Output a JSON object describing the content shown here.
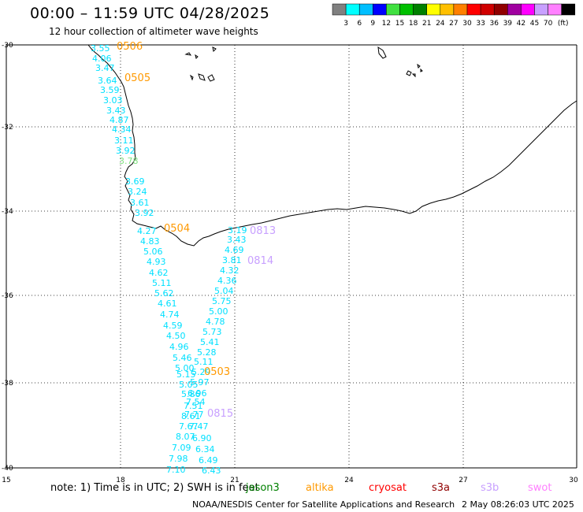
{
  "title": "00:00 – 11:59 UTC 04/28/2025",
  "subtitle": "12 hour collection of altimeter wave heights",
  "colorbar": {
    "colors": [
      "#808080",
      "#00ffff",
      "#00bfff",
      "#0000ff",
      "#40e040",
      "#00c000",
      "#008000",
      "#ffff00",
      "#ffc000",
      "#ff8000",
      "#ff0000",
      "#d00000",
      "#900000",
      "#a000a0",
      "#ff00ff",
      "#c8a0ff",
      "#ff80ff",
      "#000000"
    ],
    "labels": [
      "3",
      "6",
      "9",
      "12",
      "15",
      "18",
      "21",
      "24",
      "27",
      "30",
      "33",
      "36",
      "39",
      "42",
      "45",
      "70"
    ],
    "unit": "(ft)"
  },
  "axes": {
    "x_ticks": [
      "15",
      "18",
      "21",
      "24",
      "27",
      "30"
    ],
    "y_ticks": [
      "-30",
      "-32",
      "-34",
      "-36",
      "-38",
      "-40"
    ]
  },
  "passes": [
    {
      "label": "0506",
      "color": "#ff9900"
    },
    {
      "label": "0505",
      "color": "#ff9900"
    },
    {
      "label": "0504",
      "color": "#ff9900"
    },
    {
      "label": "0503",
      "color": "#ff9900"
    },
    {
      "label": "0813",
      "color": "#c8a0ff"
    },
    {
      "label": "0814",
      "color": "#c8a0ff"
    },
    {
      "label": "0815",
      "color": "#c8a0ff"
    }
  ],
  "track_west": [
    "3.55",
    "4.06",
    "3.47",
    "3.64",
    "3.59",
    "3.03",
    "3.43",
    "4.87",
    "4.34",
    "3.11",
    "3.92",
    "3.78",
    "3.69",
    "3.24",
    "3.61",
    "3.92",
    "4.27",
    "4.83",
    "5.06",
    "4.93",
    "4.62",
    "5.11",
    "5.62",
    "4.61",
    "4.74",
    "4.59",
    "4.50",
    "4.96",
    "5.46",
    "5.00",
    "5.15",
    "5.05",
    "5.86",
    "7.51",
    "8.61",
    "7.67",
    "8.07",
    "7.09",
    "7.98",
    "7.10"
  ],
  "track_east": [
    "3.19",
    "3.43",
    "4.69",
    "3.81",
    "4.32",
    "4.36",
    "5.04",
    "5.75",
    "5.00",
    "4.78",
    "5.73",
    "5.41",
    "5.28",
    "5.11",
    "5.29",
    "5.97",
    "6.96",
    "7.54",
    "7.77",
    "7.47",
    "6.90",
    "6.34",
    "6.49",
    "6.43"
  ],
  "note": "note:  1) Time is in UTC;  2) SWH is in feet",
  "missions": [
    {
      "name": "jason3",
      "color": "#008000"
    },
    {
      "name": "altika",
      "color": "#ff9900"
    },
    {
      "name": "cryosat",
      "color": "#ff0000"
    },
    {
      "name": "s3a",
      "color": "#900000"
    },
    {
      "name": "s3b",
      "color": "#c8a0ff"
    },
    {
      "name": "swot",
      "color": "#ff80ff"
    }
  ],
  "credit": "NOAA/NESDIS Center for Satellite Applications and Research",
  "timestamp": "2 May 08:26:03 UTC 2025"
}
